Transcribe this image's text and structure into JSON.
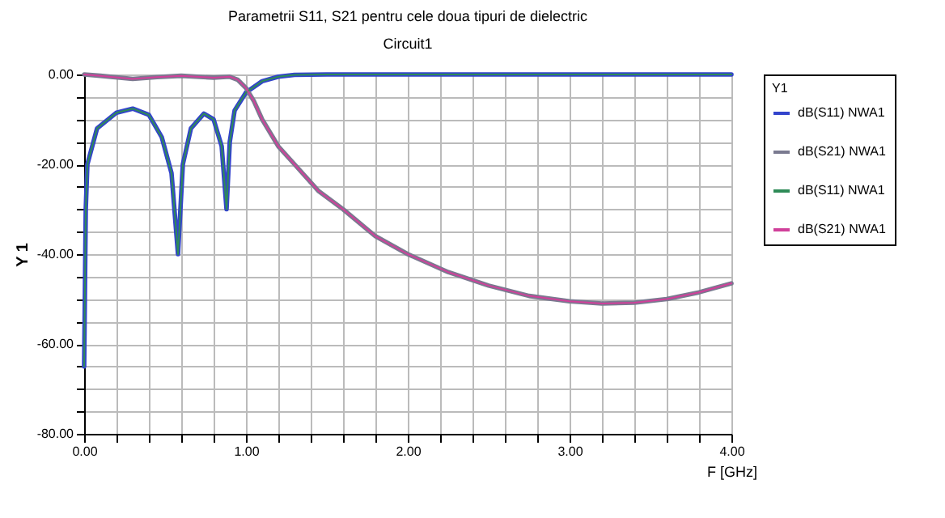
{
  "chart_data": {
    "type": "line",
    "title": "Parametrii S11, S21 pentru cele doua tipuri de dielectric",
    "subtitle": "Circuit1",
    "xlabel": "F [GHz]",
    "ylabel": "Y 1",
    "legend_title": "Y1",
    "legend": "right",
    "grid": true,
    "marker": "none",
    "line_style": "solid",
    "xlim": [
      0,
      4
    ],
    "ylim": [
      -80,
      0
    ],
    "xticks": [
      {
        "value": 0,
        "label": "0.00"
      },
      {
        "value": 0.2,
        "label": null
      },
      {
        "value": 0.4,
        "label": null
      },
      {
        "value": 0.6,
        "label": null
      },
      {
        "value": 0.8,
        "label": null
      },
      {
        "value": 1,
        "label": "1.00"
      },
      {
        "value": 1.2,
        "label": null
      },
      {
        "value": 1.4,
        "label": null
      },
      {
        "value": 1.6,
        "label": null
      },
      {
        "value": 1.8,
        "label": null
      },
      {
        "value": 2,
        "label": "2.00"
      },
      {
        "value": 2.2,
        "label": null
      },
      {
        "value": 2.4,
        "label": null
      },
      {
        "value": 2.6,
        "label": null
      },
      {
        "value": 2.8,
        "label": null
      },
      {
        "value": 3,
        "label": "3.00"
      },
      {
        "value": 3.2,
        "label": null
      },
      {
        "value": 3.4,
        "label": null
      },
      {
        "value": 3.6,
        "label": null
      },
      {
        "value": 3.8,
        "label": null
      },
      {
        "value": 4,
        "label": "4.00"
      }
    ],
    "yticks": [
      {
        "value": -80,
        "label": "-80.00"
      },
      {
        "value": -75,
        "label": null
      },
      {
        "value": -70,
        "label": null
      },
      {
        "value": -65,
        "label": null
      },
      {
        "value": -60,
        "label": "-60.00"
      },
      {
        "value": -55,
        "label": null
      },
      {
        "value": -50,
        "label": null
      },
      {
        "value": -45,
        "label": null
      },
      {
        "value": -40,
        "label": "-40.00"
      },
      {
        "value": -35,
        "label": null
      },
      {
        "value": -30,
        "label": null
      },
      {
        "value": -25,
        "label": null
      },
      {
        "value": -20,
        "label": "-20.00"
      },
      {
        "value": -15,
        "label": null
      },
      {
        "value": -10,
        "label": null
      },
      {
        "value": -5,
        "label": null
      },
      {
        "value": 0,
        "label": "0.00"
      }
    ],
    "series": [
      {
        "name": "dB(S11) NWA1",
        "color": "#3344cc",
        "x": [
          0,
          0.01,
          0.02,
          0.08,
          0.2,
          0.3,
          0.4,
          0.48,
          0.54,
          0.58,
          0.61,
          0.66,
          0.74,
          0.8,
          0.85,
          0.88,
          0.9,
          0.93,
          1.0,
          1.1,
          1.2,
          1.3,
          1.5,
          2,
          3,
          4
        ],
        "values": [
          -65,
          -30,
          -20,
          -12,
          -8.5,
          -7.6,
          -9,
          -14,
          -22,
          -40,
          -20,
          -12,
          -8.7,
          -10,
          -16,
          -30,
          -15,
          -8,
          -4,
          -1.5,
          -0.5,
          -0.1,
          0,
          0,
          0,
          0
        ]
      },
      {
        "name": "dB(S21) NWA1",
        "color": "#7a7a90",
        "x": [
          0,
          0.1,
          0.3,
          0.45,
          0.6,
          0.8,
          0.9,
          0.95,
          1.0,
          1.05,
          1.1,
          1.2,
          1.3,
          1.45,
          1.6,
          1.8,
          2.0,
          2.25,
          2.5,
          2.75,
          3.0,
          3.2,
          3.4,
          3.6,
          3.8,
          4.0
        ],
        "values": [
          0,
          -0.3,
          -1,
          -0.6,
          -0.3,
          -0.7,
          -0.5,
          -1.2,
          -3,
          -6,
          -10,
          -16,
          -20,
          -26,
          -30,
          -36,
          -40,
          -44,
          -47,
          -49.3,
          -50.5,
          -51,
          -50.8,
          -50,
          -48.5,
          -46.5
        ]
      },
      {
        "name": "dB(S11) NWA1",
        "color": "#2e8b57",
        "x": [
          0,
          0.01,
          0.02,
          0.08,
          0.2,
          0.3,
          0.4,
          0.48,
          0.54,
          0.58,
          0.61,
          0.66,
          0.74,
          0.8,
          0.85,
          0.88,
          0.9,
          0.93,
          1.0,
          1.1,
          1.2,
          1.3,
          1.5,
          2,
          3,
          4
        ],
        "values": [
          -65,
          -30,
          -20,
          -12,
          -8.5,
          -7.6,
          -9,
          -14,
          -22,
          -40,
          -20,
          -12,
          -8.7,
          -10,
          -16,
          -30,
          -15,
          -8,
          -4,
          -1.5,
          -0.5,
          -0.1,
          0,
          0,
          0,
          0
        ]
      },
      {
        "name": "dB(S21) NWA1",
        "color": "#d0409a",
        "x": [
          0,
          0.1,
          0.3,
          0.45,
          0.6,
          0.8,
          0.9,
          0.95,
          1.0,
          1.05,
          1.1,
          1.2,
          1.3,
          1.45,
          1.6,
          1.8,
          2.0,
          2.25,
          2.5,
          2.75,
          3.0,
          3.2,
          3.4,
          3.6,
          3.8,
          4.0
        ],
        "values": [
          0,
          -0.3,
          -1,
          -0.6,
          -0.3,
          -0.7,
          -0.5,
          -1.2,
          -3,
          -6,
          -10,
          -16,
          -20,
          -26,
          -30,
          -36,
          -40,
          -44,
          -47,
          -49.3,
          -50.5,
          -51,
          -50.8,
          -50,
          -48.5,
          -46.5
        ]
      }
    ]
  }
}
